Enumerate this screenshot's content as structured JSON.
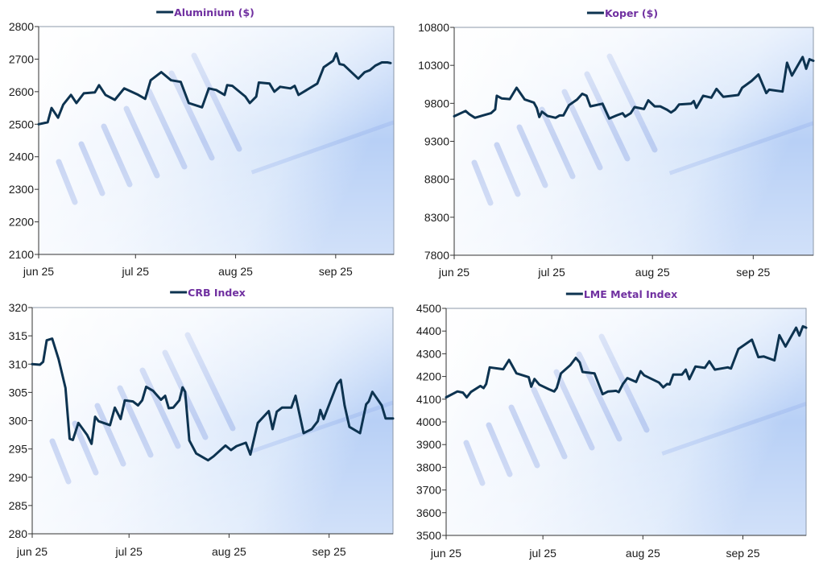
{
  "x_unit": "days since 1 jun 2025",
  "colors": {
    "line": "#0d3350",
    "title": "#7030a0",
    "axis": "#333333",
    "bg_light": "#ffffff",
    "bg_blue": "#bcd3f5",
    "bar": "#8fa8e6"
  },
  "chart_data": [
    {
      "type": "line",
      "title": "Aluminium ($)",
      "legend": "top",
      "ylim": [
        2100,
        2800
      ],
      "yticks": [
        2100,
        2200,
        2300,
        2400,
        2500,
        2600,
        2700,
        2800
      ],
      "xlim": [
        0,
        110
      ],
      "xticks": [
        {
          "x": 0,
          "label": "jun 25"
        },
        {
          "x": 30,
          "label": "jul 25"
        },
        {
          "x": 61,
          "label": "aug 25"
        },
        {
          "x": 92,
          "label": "sep 25"
        }
      ],
      "x": [
        0,
        2.8,
        4,
        6,
        7.6,
        10,
        11.7,
        14,
        17.4,
        18.7,
        20.7,
        23.6,
        26.5,
        30.5,
        33,
        34.7,
        38,
        41,
        44,
        46.5,
        50.6,
        52.7,
        55,
        57.6,
        58.4,
        60,
        64,
        65.4,
        67.4,
        68.2,
        71.5,
        73,
        74.8,
        78,
        79.3,
        80.5,
        86.3,
        88.3,
        91.2,
        92.2,
        93.2,
        94.5,
        99,
        101,
        102.6,
        104.3,
        106.3,
        108,
        109
      ],
      "y": [
        2500,
        2506,
        2550,
        2520,
        2560,
        2590,
        2565,
        2595,
        2598,
        2620,
        2590,
        2575,
        2610,
        2592,
        2578,
        2635,
        2660,
        2635,
        2630,
        2565,
        2552,
        2610,
        2605,
        2590,
        2620,
        2618,
        2585,
        2565,
        2585,
        2628,
        2625,
        2600,
        2615,
        2610,
        2618,
        2590,
        2625,
        2675,
        2695,
        2718,
        2685,
        2682,
        2640,
        2660,
        2666,
        2680,
        2690,
        2690,
        2688
      ]
    },
    {
      "type": "line",
      "title": "Koper ($)",
      "legend": "top",
      "ylim": [
        7800,
        10800
      ],
      "yticks": [
        7800,
        8300,
        8800,
        9300,
        9800,
        10300,
        10800
      ],
      "xlim": [
        0,
        110.5
      ],
      "xticks": [
        {
          "x": 0,
          "label": "jun 25"
        },
        {
          "x": 30,
          "label": "jul 25"
        },
        {
          "x": 61,
          "label": "aug 25"
        },
        {
          "x": 92,
          "label": "sep 25"
        }
      ],
      "x": [
        0,
        3.5,
        4.7,
        6.4,
        8.8,
        11.3,
        12.6,
        13.1,
        14.6,
        17.1,
        19.2,
        21.7,
        24.5,
        25.4,
        26.2,
        27,
        28.7,
        31.2,
        32.4,
        33.6,
        35.3,
        37.8,
        39.4,
        40.7,
        41.9,
        45.6,
        47.7,
        50.2,
        51.8,
        52.6,
        54.3,
        55.5,
        58.4,
        59.7,
        61.7,
        63.4,
        65.5,
        66.7,
        67.9,
        69.2,
        72.9,
        73.7,
        74.5,
        76.6,
        79.1,
        80.7,
        82.8,
        87.4,
        88.6,
        91.5,
        93.6,
        96,
        96.9,
        101,
        102.4,
        103.9,
        107.2,
        108.3,
        109.3,
        110.5
      ],
      "y": [
        9630,
        9700,
        9655,
        9610,
        9640,
        9670,
        9720,
        9900,
        9865,
        9855,
        10005,
        9850,
        9810,
        9740,
        9620,
        9690,
        9635,
        9610,
        9640,
        9640,
        9775,
        9850,
        9925,
        9900,
        9760,
        9795,
        9600,
        9645,
        9670,
        9625,
        9670,
        9750,
        9725,
        9840,
        9760,
        9760,
        9715,
        9680,
        9715,
        9785,
        9795,
        9830,
        9740,
        9900,
        9875,
        9990,
        9885,
        9910,
        10005,
        10095,
        10180,
        9935,
        9980,
        9955,
        10335,
        10165,
        10410,
        10255,
        10380,
        10360
      ]
    },
    {
      "type": "line",
      "title": "CRB Index",
      "legend": "top",
      "ylim": [
        280,
        320
      ],
      "yticks": [
        280,
        285,
        290,
        295,
        300,
        305,
        310,
        315,
        320
      ],
      "xlim": [
        0,
        111.8
      ],
      "xticks": [
        {
          "x": 0,
          "label": "jun 25"
        },
        {
          "x": 30,
          "label": "jul 25"
        },
        {
          "x": 61,
          "label": "aug 25"
        },
        {
          "x": 92,
          "label": "sep 25"
        }
      ],
      "x": [
        0,
        2.4,
        3.4,
        4.5,
        6.2,
        8.2,
        10.3,
        11.6,
        12.6,
        14.3,
        17,
        18.4,
        19.5,
        20.6,
        24.1,
        25.6,
        27.4,
        28.7,
        31.2,
        32.8,
        34.1,
        35.3,
        37.4,
        39.9,
        41.2,
        42.3,
        43.7,
        45.6,
        46.6,
        47.4,
        48.7,
        50.8,
        54.5,
        56.2,
        59.9,
        61.6,
        63.3,
        66.2,
        67.6,
        69.9,
        73.3,
        74.5,
        75.8,
        77.4,
        80.3,
        81.6,
        84.1,
        86.6,
        88.5,
        89.3,
        90.3,
        94.5,
        95.6,
        96.8,
        98.3,
        101.6,
        103.5,
        104.3,
        105.4,
        108.3,
        109.5,
        111.8
      ],
      "y": [
        310,
        309.9,
        310.4,
        314.2,
        314.5,
        310.8,
        305.8,
        296.8,
        296.6,
        299.6,
        297.5,
        295.9,
        300.7,
        299.9,
        299.2,
        302.3,
        300.3,
        303.6,
        303.4,
        302.7,
        303.6,
        306,
        305.3,
        303.7,
        304.4,
        302.2,
        302.3,
        303.6,
        305.9,
        305.1,
        296.5,
        294.2,
        293,
        293.7,
        295.6,
        294.8,
        295.5,
        296.1,
        294,
        299.6,
        301.7,
        298.5,
        301.6,
        302.3,
        302.3,
        304.4,
        297.8,
        298.5,
        299.9,
        301.9,
        300.3,
        306.5,
        307.2,
        302.7,
        298.9,
        297.8,
        302.9,
        303.4,
        305.1,
        302.7,
        300.4,
        300.4
      ]
    },
    {
      "type": "line",
      "title": "LME Metal Index",
      "legend": "top",
      "ylim": [
        3500,
        4500
      ],
      "yticks": [
        3500,
        3600,
        3700,
        3800,
        3900,
        4000,
        4100,
        4200,
        4300,
        4400,
        4500
      ],
      "xlim": [
        0,
        111.6
      ],
      "xticks": [
        {
          "x": 0,
          "label": "jun 25"
        },
        {
          "x": 30,
          "label": "jul 25"
        },
        {
          "x": 61,
          "label": "aug 25"
        },
        {
          "x": 92,
          "label": "sep 25"
        }
      ],
      "x": [
        0,
        3.5,
        5.2,
        6.4,
        7.7,
        10.6,
        11.6,
        12.4,
        13.5,
        17.7,
        19.5,
        21.8,
        25.6,
        26.4,
        27.4,
        28.9,
        31.8,
        33.5,
        34.3,
        35.6,
        38.5,
        40.2,
        41.4,
        42.3,
        46,
        48.5,
        50.2,
        52.7,
        53.5,
        54.8,
        56.2,
        58.9,
        60.3,
        61.4,
        66,
        67.3,
        68.5,
        69.3,
        70.4,
        73.1,
        74.3,
        75.4,
        77.3,
        80.2,
        81.6,
        83.3,
        87.3,
        88.3,
        90.6,
        94.8,
        96.8,
        98.5,
        101.8,
        103.3,
        105.2,
        108.5,
        109.5,
        110.6,
        111.6
      ],
      "y": [
        4108,
        4134,
        4129,
        4108,
        4132,
        4158,
        4149,
        4167,
        4240,
        4232,
        4273,
        4214,
        4197,
        4155,
        4189,
        4164,
        4144,
        4134,
        4150,
        4214,
        4250,
        4282,
        4262,
        4220,
        4214,
        4122,
        4134,
        4137,
        4131,
        4167,
        4193,
        4176,
        4223,
        4205,
        4173,
        4152,
        4167,
        4165,
        4208,
        4208,
        4230,
        4188,
        4244,
        4238,
        4267,
        4230,
        4240,
        4235,
        4321,
        4362,
        4285,
        4288,
        4271,
        4382,
        4332,
        4415,
        4380,
        4421,
        4415
      ]
    }
  ]
}
